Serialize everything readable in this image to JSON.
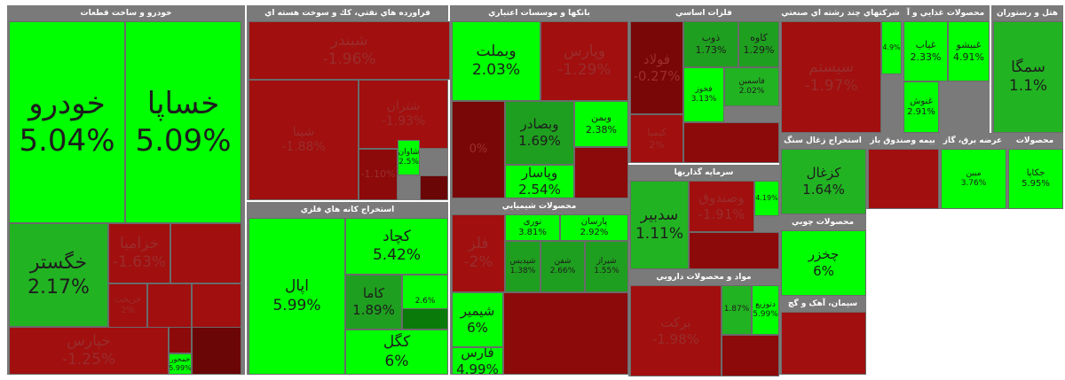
{
  "colors": {
    "bright_green": "#00ff00",
    "mid_green": "#22b322",
    "dark_green": "#0a7a0a",
    "red": "#a10f0f",
    "dark_red": "#6a0606",
    "header": "#7a7a7a"
  },
  "sectors": [
    {
      "title": "خودرو و ساخت قطعات",
      "tiles": [
        {
          "name": "خودرو",
          "pct": "5.04%",
          "color": "#00ff00"
        },
        {
          "name": "خساپا",
          "pct": "5.09%",
          "color": "#00ff00"
        },
        {
          "name": "خگستر",
          "pct": "2.17%",
          "color": "#22b322"
        },
        {
          "name": "خزامیا",
          "pct": "-1.63%",
          "color": "#a10f0f"
        },
        {
          "name": "",
          "pct": "",
          "color": "#a10f0f"
        },
        {
          "name": "خریخت",
          "pct": "2%",
          "color": "#a10f0f"
        },
        {
          "name": "",
          "pct": "",
          "color": "#a10f0f"
        },
        {
          "name": "",
          "pct": "",
          "color": "#a10f0f"
        },
        {
          "name": "خپارس",
          "pct": "-1.25%",
          "color": "#a10f0f"
        },
        {
          "name": "",
          "pct": "",
          "color": "#8c0a0a"
        },
        {
          "name": "خمحور",
          "pct": "5.99%",
          "color": "#00ff00"
        },
        {
          "name": "",
          "pct": "",
          "color": "#6a0606"
        }
      ]
    },
    {
      "title": "فراورده هاي نفتي، كك و سوخت هسته اي",
      "tiles": [
        {
          "name": "شبندر",
          "pct": "-1.96%",
          "color": "#a10f0f"
        },
        {
          "name": "شپنا",
          "pct": "-1.88%",
          "color": "#a10f0f"
        },
        {
          "name": "شتران",
          "pct": "-1.93%",
          "color": "#a10f0f"
        },
        {
          "name": "",
          "pct": "-1.10%",
          "color": "#8c0a0a"
        },
        {
          "name": "شاوان",
          "pct": "2.5%",
          "color": "#00ff00"
        },
        {
          "name": "",
          "pct": "",
          "color": "#6a0606"
        }
      ]
    },
    {
      "title": "بانكها و موسسات اعتباري",
      "tiles": [
        {
          "name": "وبملت",
          "pct": "2.03%",
          "color": "#00ff00"
        },
        {
          "name": "وپارس",
          "pct": "-1.29%",
          "color": "#a10f0f"
        },
        {
          "name": "",
          "pct": "0%",
          "color": "#7a0707"
        },
        {
          "name": "وبصادر",
          "pct": "1.69%",
          "color": "#1f9f1f"
        },
        {
          "name": "وبمن",
          "pct": "2.38%",
          "color": "#00ff00"
        },
        {
          "name": "وپاسار",
          "pct": "2.54%",
          "color": "#00ff00"
        },
        {
          "name": "",
          "pct": "",
          "color": "#8c0a0a"
        }
      ]
    },
    {
      "title": "استخراج كانه هاي فلزي",
      "tiles": [
        {
          "name": "اپال",
          "pct": "5.99%",
          "color": "#00ff00"
        },
        {
          "name": "کچاد",
          "pct": "5.42%",
          "color": "#00ff00"
        },
        {
          "name": "کاما",
          "pct": "1.89%",
          "color": "#1f9f1f"
        },
        {
          "name": "",
          "pct": "2.6%",
          "color": "#00ff00"
        },
        {
          "name": "کگل",
          "pct": "6%",
          "color": "#00ff00"
        },
        {
          "name": "",
          "pct": "",
          "color": "#0a7a0a"
        }
      ]
    },
    {
      "title": "محصولات شيميايي",
      "tiles": [
        {
          "name": "فلز",
          "pct": "-2%",
          "color": "#a10f0f"
        },
        {
          "name": "نوری",
          "pct": "3.81%",
          "color": "#00ff00"
        },
        {
          "name": "پارسان",
          "pct": "2.92%",
          "color": "#00ff00"
        },
        {
          "name": "شپدیس",
          "pct": "1.38%",
          "color": "#1f9f1f"
        },
        {
          "name": "شفن",
          "pct": "2.66%",
          "color": "#1f9f1f"
        },
        {
          "name": "شیراز",
          "pct": "1.55%",
          "color": "#1f9f1f"
        },
        {
          "name": "شیمیر",
          "pct": "6%",
          "color": "#00ff00"
        },
        {
          "name": "فارس",
          "pct": "4.99%",
          "color": "#00ff00"
        },
        {
          "name": "",
          "pct": "",
          "color": "#8c0a0a"
        }
      ]
    },
    {
      "title": "فلزات اساسي",
      "tiles": [
        {
          "name": "فولاد",
          "pct": "-0.27%",
          "color": "#7a0707"
        },
        {
          "name": "ذوب",
          "pct": "1.73%",
          "color": "#1f9f1f"
        },
        {
          "name": "کاوه",
          "pct": "1.29%",
          "color": "#1f9f1f"
        },
        {
          "name": "فخوز",
          "pct": "3.13%",
          "color": "#00ff00"
        },
        {
          "name": "فاسمین",
          "pct": "2.02%",
          "color": "#22b322"
        },
        {
          "name": "کیمیا",
          "pct": "2%",
          "color": "#a10f0f"
        },
        {
          "name": "",
          "pct": "",
          "color": "#8c0a0a"
        }
      ]
    },
    {
      "title": "سرمايه گذاريها",
      "tiles": [
        {
          "name": "سدبیر",
          "pct": "1.11%",
          "color": "#22b322"
        },
        {
          "name": "وصندوق",
          "pct": "-1.91%",
          "color": "#a10f0f"
        },
        {
          "name": "",
          "pct": "4.19%",
          "color": "#00ff00"
        },
        {
          "name": "",
          "pct": "",
          "color": "#8c0a0a"
        }
      ]
    },
    {
      "title": "مواد و محصولات دارويي",
      "tiles": [
        {
          "name": "برکت",
          "pct": "-1.98%",
          "color": "#a10f0f"
        },
        {
          "name": "",
          "pct": "1.87%",
          "color": "#22b322"
        },
        {
          "name": "دتوزیع",
          "pct": "5.99%",
          "color": "#00ff00"
        },
        {
          "name": "",
          "pct": "",
          "color": "#8c0a0a"
        }
      ]
    },
    {
      "title": "شركتهاي چند رشته اي صنعتي",
      "tiles": [
        {
          "name": "سیستم",
          "pct": "-1.97%",
          "color": "#a10f0f"
        },
        {
          "name": "",
          "pct": "4.9%",
          "color": "#00ff00"
        }
      ]
    },
    {
      "title": "محصولات غذايي و آ",
      "tiles": [
        {
          "name": "غیاب",
          "pct": "2.33%",
          "color": "#00ff00"
        },
        {
          "name": "غبیشو",
          "pct": "4.91%",
          "color": "#00ff00"
        },
        {
          "name": "غنوش",
          "pct": "2.91%",
          "color": "#00ff00"
        }
      ]
    },
    {
      "title": "هتل و رستوران",
      "tiles": [
        {
          "name": "سمگا",
          "pct": "1.1%",
          "color": "#22b322"
        }
      ]
    },
    {
      "title": "استخراج زغال سنگ",
      "tiles": [
        {
          "name": "کزغال",
          "pct": "1.64%",
          "color": "#22b322"
        }
      ]
    },
    {
      "title": "محصولات چوبي",
      "tiles": [
        {
          "name": "چخزر",
          "pct": "6%",
          "color": "#00ff00"
        }
      ]
    },
    {
      "title": "بيمه وصندوق باز",
      "tiles": [
        {
          "name": "",
          "pct": "",
          "color": "#a10f0f"
        }
      ]
    },
    {
      "title": "عرضه برق، گاز",
      "tiles": [
        {
          "name": "مبین",
          "pct": "3.76%",
          "color": "#00ff00"
        }
      ]
    },
    {
      "title": "محصولات",
      "tiles": [
        {
          "name": "جکاپا",
          "pct": "5.95%",
          "color": "#00ff00"
        }
      ]
    },
    {
      "title": "سیمان، آهک و گچ",
      "tiles": [
        {
          "name": "",
          "pct": "",
          "color": "#a10f0f"
        }
      ]
    }
  ]
}
